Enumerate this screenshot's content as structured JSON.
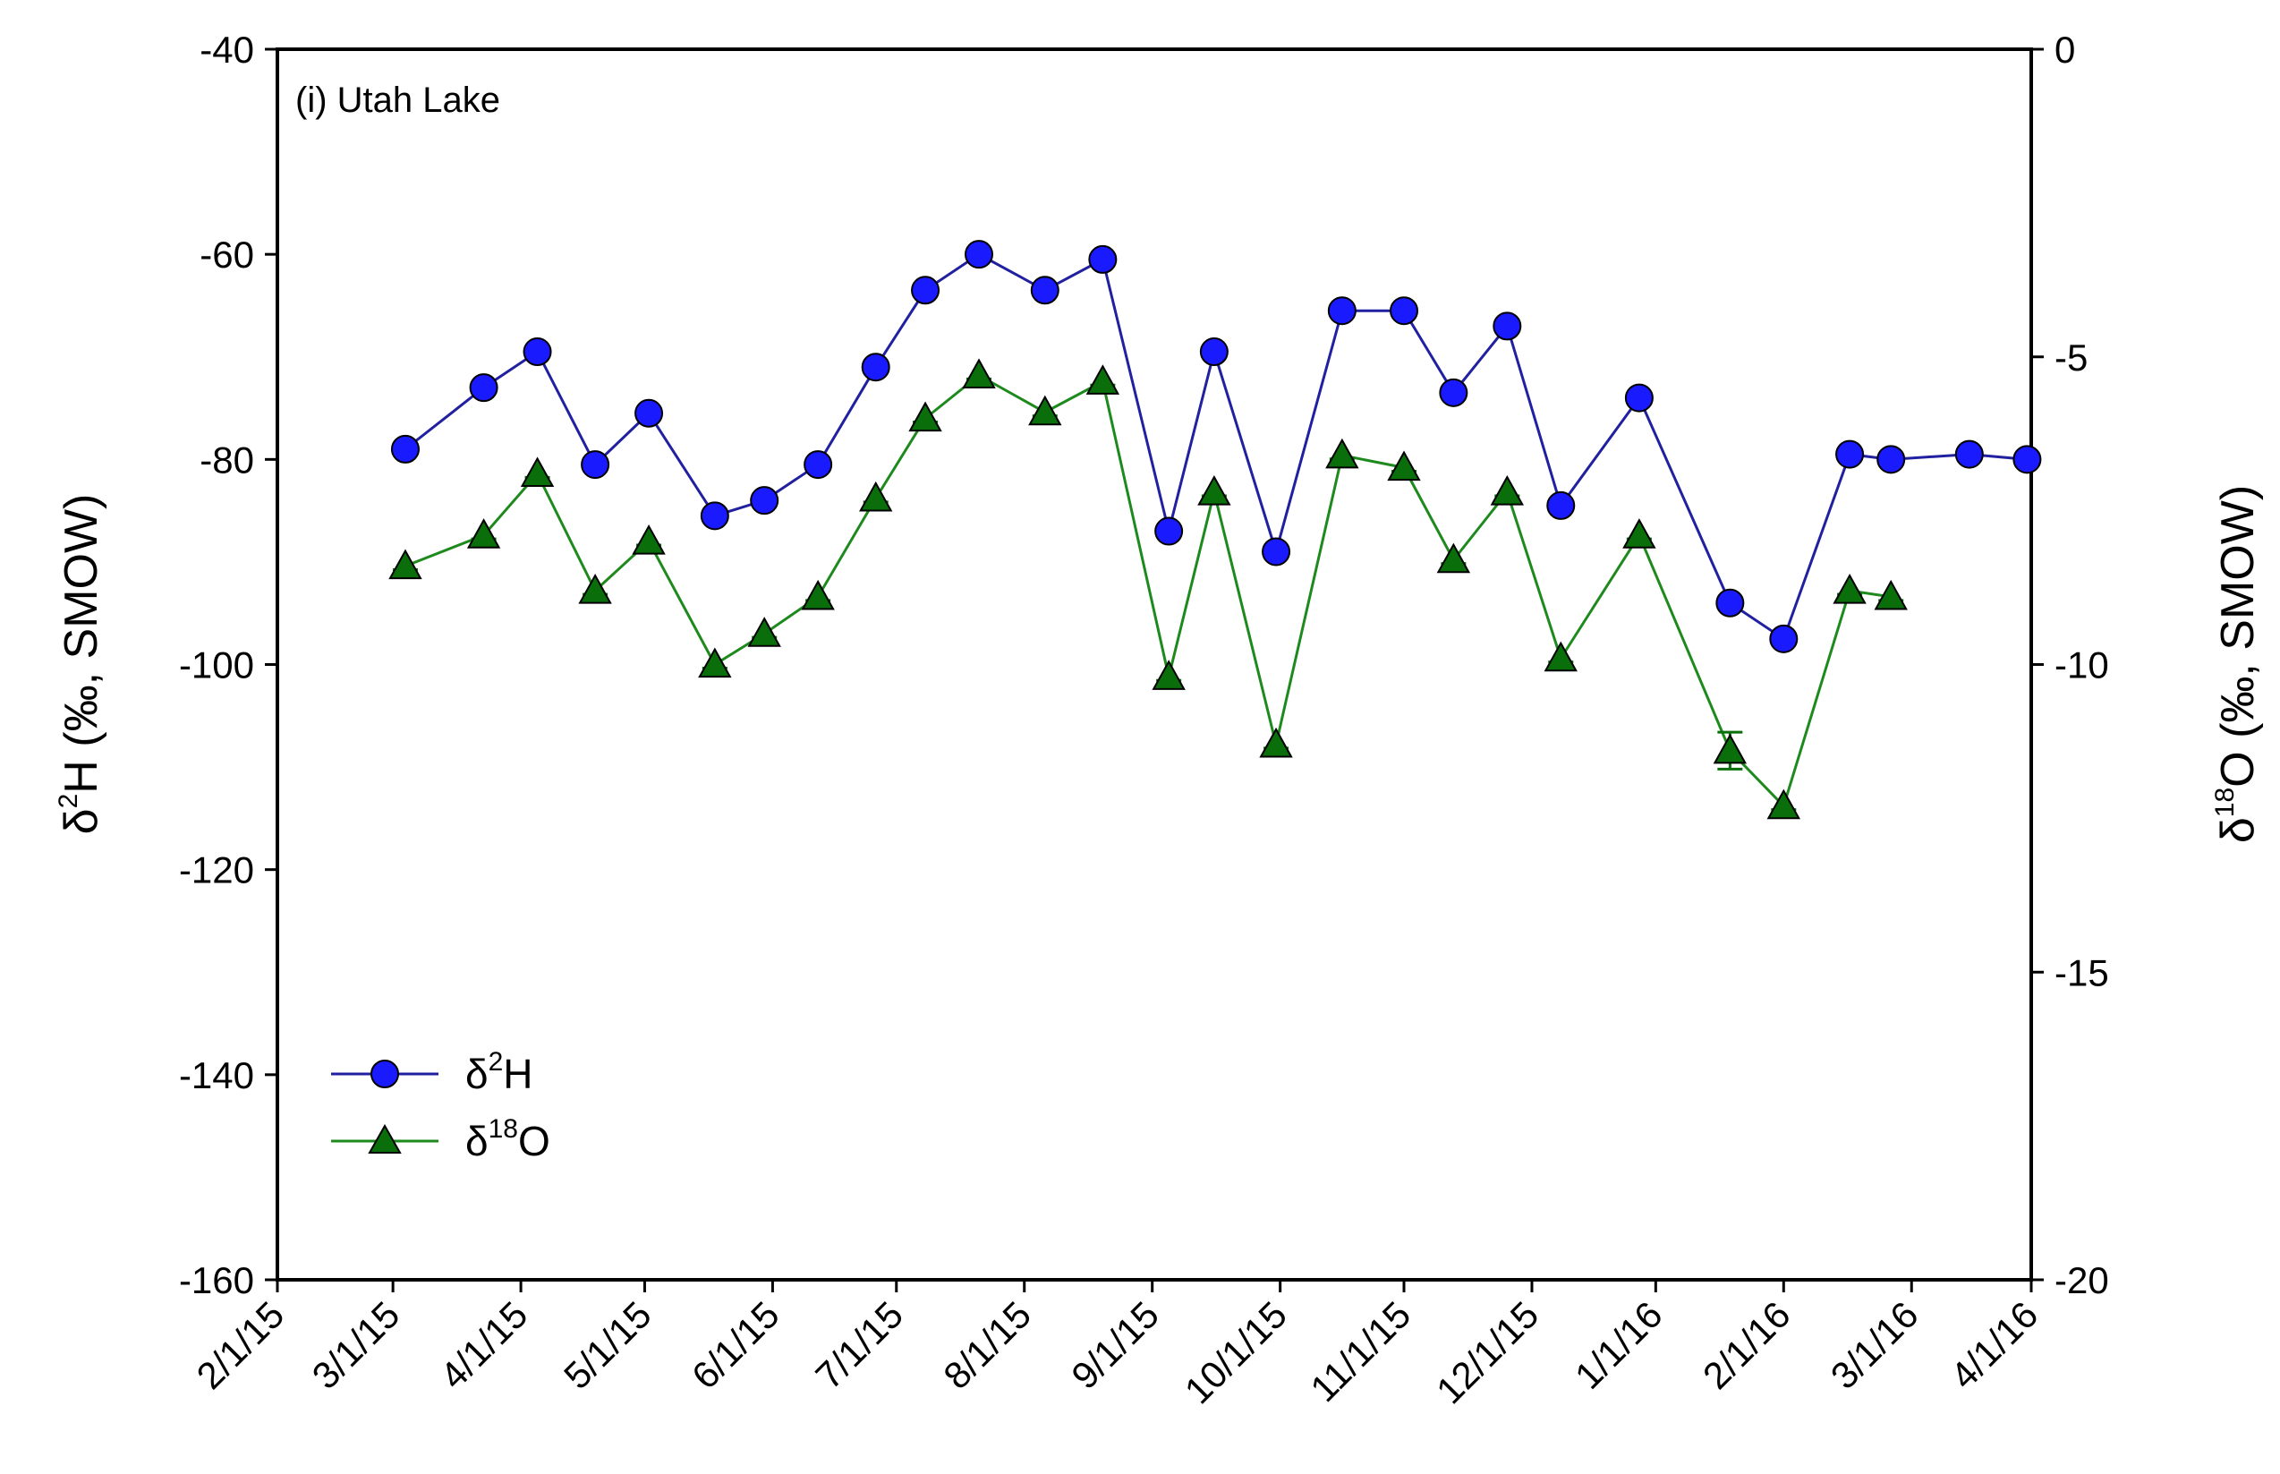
{
  "chart_data": {
    "type": "line",
    "panel_label": "(i) Utah Lake",
    "left_axis": {
      "label_delta": "δ",
      "label_sup": "2",
      "label_rest": "H (‰, SMOW)",
      "ylim": [
        -160,
        -40
      ],
      "ticks": [
        -160,
        -140,
        -120,
        -100,
        -80,
        -60,
        -40
      ],
      "tick_labels": [
        "-160",
        "-140",
        "-120",
        "-100",
        "-80",
        "-60",
        "-40"
      ]
    },
    "right_axis": {
      "label_delta": "δ",
      "label_sup": "18",
      "label_rest": "O (‰, SMOW)",
      "ylim": [
        -20,
        0
      ],
      "ticks": [
        -20,
        -15,
        -10,
        -5,
        0
      ],
      "tick_labels": [
        "-20",
        "-15",
        "-10",
        "-5",
        "0"
      ]
    },
    "x_axis": {
      "range_days": [
        0,
        425
      ],
      "ticks_days": [
        0,
        28,
        59,
        89,
        120,
        150,
        181,
        212,
        243,
        273,
        304,
        334,
        365,
        396,
        425
      ],
      "tick_labels": [
        "2/1/15",
        "3/1/15",
        "4/1/15",
        "5/1/15",
        "6/1/15",
        "7/1/15",
        "8/1/15",
        "9/1/15",
        "10/1/15",
        "11/1/15",
        "12/1/15",
        "1/1/16",
        "2/1/16",
        "3/1/16",
        "4/1/16"
      ]
    },
    "series": [
      {
        "name": "δ2H",
        "legend_delta": "δ",
        "legend_sup": "2",
        "legend_rest": "H",
        "axis": "left",
        "marker": "circle",
        "line_color": "#2020a0",
        "marker_color": "#1a1aff",
        "x_days": [
          31,
          50,
          63,
          77,
          90,
          106,
          118,
          131,
          145,
          157,
          170,
          186,
          200,
          216,
          227,
          242,
          258,
          273,
          285,
          298,
          311,
          330,
          352,
          365,
          381,
          391,
          410,
          424
        ],
        "values": [
          -79,
          -73,
          -69.5,
          -80.5,
          -75.5,
          -85.5,
          -84,
          -80.5,
          -71,
          -63.5,
          -60,
          -63.5,
          -60.5,
          -87,
          -69.5,
          -89,
          -65.5,
          -65.5,
          -73.5,
          -67,
          -84.5,
          -74,
          -94,
          -97.5,
          -79.5,
          -80,
          -79.5,
          -80
        ]
      },
      {
        "name": "δ18O",
        "legend_delta": "δ",
        "legend_sup": "18",
        "legend_rest": "O",
        "axis": "right",
        "marker": "triangle",
        "line_color": "#1e8a1e",
        "marker_color": "#0a6e0a",
        "x_days": [
          31,
          50,
          63,
          77,
          90,
          106,
          118,
          131,
          145,
          157,
          170,
          186,
          200,
          216,
          227,
          242,
          258,
          273,
          285,
          298,
          311,
          330,
          352,
          365,
          381,
          391
        ],
        "values": [
          -8.4,
          -7.9,
          -6.9,
          -8.8,
          -8.0,
          -10.0,
          -9.5,
          -8.9,
          -7.3,
          -6.0,
          -5.3,
          -5.9,
          -5.4,
          -10.2,
          -7.2,
          -11.3,
          -6.6,
          -6.8,
          -8.3,
          -7.2,
          -9.9,
          -7.9,
          -11.4,
          -12.3,
          -8.8,
          -8.9
        ],
        "error_bars": [
          0,
          0,
          0,
          0,
          0,
          0,
          0,
          0,
          0,
          0,
          0,
          0,
          0,
          0,
          0,
          0,
          0,
          0,
          0,
          0,
          0,
          0,
          0.3,
          0,
          0,
          0
        ]
      }
    ]
  }
}
